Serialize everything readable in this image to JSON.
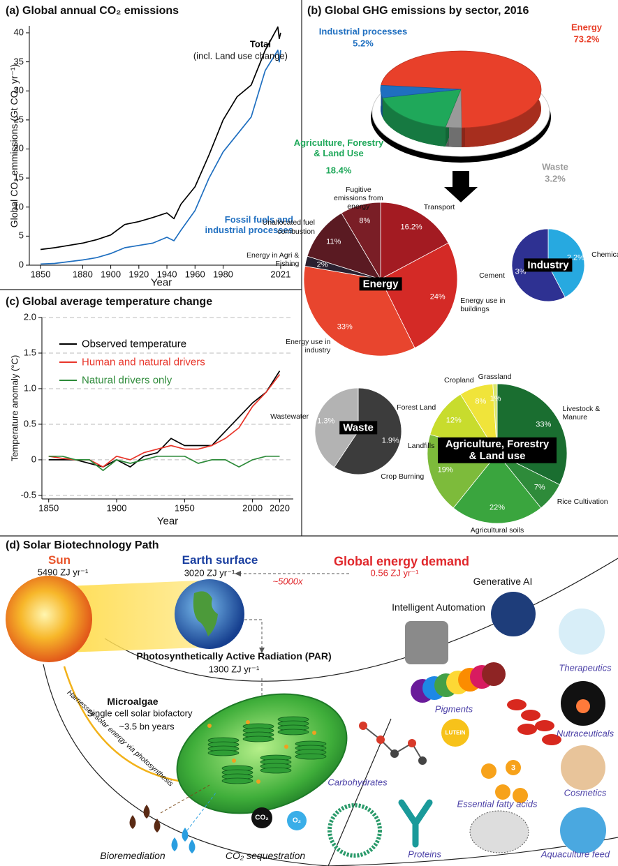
{
  "chart_data": [
    {
      "type": "line",
      "title": "(a) Global annual CO₂ emissions",
      "x_label": "Year",
      "y_label": "Global CO₂ emmissions (Gt CO₂ yr⁻¹)",
      "x": [
        1850,
        1860,
        1870,
        1880,
        1890,
        1900,
        1910,
        1920,
        1930,
        1940,
        1945,
        1950,
        1960,
        1970,
        1980,
        1990,
        2000,
        2010,
        2019,
        2020,
        2021
      ],
      "series": [
        {
          "name": "Total",
          "color": "#000000",
          "values": [
            2.7,
            3.0,
            3.4,
            3.8,
            4.4,
            5.2,
            7.0,
            7.5,
            8.2,
            9.0,
            8.0,
            10.5,
            13.5,
            19,
            25,
            29,
            31,
            37,
            41,
            39,
            40
          ]
        },
        {
          "name": "Fossil fuels and industrial processes",
          "color": "#1f6fc0",
          "values": [
            0.2,
            0.3,
            0.6,
            0.9,
            1.3,
            2.0,
            3.0,
            3.4,
            3.8,
            4.8,
            4.2,
            6.0,
            9.4,
            15,
            19.5,
            22.5,
            25.5,
            33.5,
            37,
            35,
            37
          ]
        }
      ],
      "annotations": [
        "(incl. Land use change)"
      ],
      "xlim": [
        1842,
        2030
      ],
      "ylim": [
        0,
        41.2
      ],
      "xticks": [
        1850,
        1880,
        1900,
        1920,
        1940,
        1960,
        1980,
        2021
      ],
      "yticks": [
        0,
        5,
        10,
        15,
        20,
        25,
        30,
        35,
        40
      ],
      "grid": false
    },
    {
      "type": "line",
      "title": "(c) Global average temperature change",
      "x_label": "Year",
      "y_label": "Temperature anomaly (°C)",
      "x": [
        1850,
        1860,
        1870,
        1880,
        1890,
        1900,
        1910,
        1920,
        1930,
        1940,
        1950,
        1960,
        1970,
        1980,
        1990,
        2000,
        2010,
        2020
      ],
      "series": [
        {
          "name": "Observed temperature",
          "color": "#000000",
          "values": [
            0.0,
            0.0,
            0.0,
            -0.05,
            -0.1,
            0.0,
            -0.1,
            0.05,
            0.1,
            0.3,
            0.2,
            0.2,
            0.2,
            0.4,
            0.6,
            0.8,
            0.95,
            1.25
          ]
        },
        {
          "name": "Human and natural drivers",
          "color": "#e8352a",
          "values": [
            0.05,
            0.02,
            0.0,
            0.0,
            -0.1,
            0.05,
            0.0,
            0.1,
            0.15,
            0.2,
            0.15,
            0.15,
            0.2,
            0.3,
            0.45,
            0.75,
            0.95,
            1.2
          ]
        },
        {
          "name": "Natural drivers only",
          "color": "#2e8b3a",
          "values": [
            0.05,
            0.05,
            0.0,
            0.0,
            -0.15,
            0.0,
            -0.05,
            0.0,
            0.05,
            0.05,
            0.05,
            -0.05,
            0.0,
            0.0,
            -0.1,
            0.0,
            0.05,
            0.05
          ]
        }
      ],
      "xlim": [
        1845,
        2030
      ],
      "ylim": [
        -0.55,
        2.0
      ],
      "xticks": [
        1850,
        1900,
        1950,
        2000,
        2020
      ],
      "yticks": [
        -0.5,
        0,
        0.5,
        {
          "value": 1,
          "label": "1.0"
        },
        1.5,
        {
          "value": 2,
          "label": "2.0"
        }
      ],
      "grid": true,
      "legend": "upper left"
    },
    {
      "type": "pie",
      "title": "(b) Global GHG emissions by sector, 2016",
      "categories": [
        "Energy",
        "Waste",
        "Agriculture, Forestry & Land Use",
        "Industrial processes"
      ],
      "values": [
        73.2,
        3.2,
        18.4,
        5.2
      ],
      "value_labels": [
        "73.2%",
        "3.2%",
        "18.4%",
        "5.2%"
      ],
      "colors": [
        "#e8402a",
        "#9a9a9a",
        "#1fa85a",
        "#1f6fc0"
      ]
    },
    {
      "type": "pie",
      "title": "Energy",
      "categories": [
        "Transport",
        "Energy use in buildings",
        "Energy use in industry",
        "Energy in Agri & Fishing",
        "Unallocated fuel combustion",
        "Fugitive emissions from energy"
      ],
      "values": [
        16.2,
        24,
        33,
        2,
        11,
        8
      ],
      "value_labels": [
        "16.2%",
        "24%",
        "33%",
        "2%",
        "11%",
        "8%"
      ],
      "colors": [
        "#a31b22",
        "#d42a26",
        "#e8452e",
        "#2a2030",
        "#5a1a22",
        "#7a1e26"
      ]
    },
    {
      "type": "pie",
      "title": "Industry",
      "categories": [
        "Chemicals",
        "Cement"
      ],
      "values": [
        2.2,
        3
      ],
      "value_labels": [
        "2.2%",
        "3%"
      ],
      "colors": [
        "#27a9e0",
        "#2e3192"
      ]
    },
    {
      "type": "pie",
      "title": "Waste",
      "categories": [
        "Landfills",
        "Wastewater"
      ],
      "values": [
        1.9,
        1.3
      ],
      "value_labels": [
        "1.9%",
        "1.3%"
      ],
      "colors": [
        "#3c3c3c",
        "#b3b3b3"
      ]
    },
    {
      "type": "pie",
      "title": "Agriculture, Forestry & Land use",
      "categories": [
        "Livestock & Manure",
        "Rice Cultivation",
        "Agricultural soils",
        "Crop Burning",
        "Forest Land",
        "Cropland",
        "Grassland"
      ],
      "values": [
        33,
        7,
        22,
        19,
        12,
        8,
        1
      ],
      "value_labels": [
        "33%",
        "7%",
        "22%",
        "19%",
        "12%",
        "8%",
        "1%"
      ],
      "colors": [
        "#1a6e30",
        "#2e8b3a",
        "#3aa53e",
        "#7dbb3b",
        "#c8dc2d",
        "#f0e43a",
        "#d8e66a"
      ]
    }
  ],
  "diagram": {
    "title": "(d) Solar Biotechnology Path",
    "sun": {
      "name": "Sun",
      "value": "5490 ZJ yr⁻¹"
    },
    "earth": {
      "name": "Earth surface",
      "value": "3020 ZJ yr⁻¹"
    },
    "demand": {
      "name": "Global energy demand",
      "value": "0.56 ZJ yr⁻¹"
    },
    "ratio": "~5000x",
    "par": {
      "name": "Photosynthetically Active Radiation (PAR)",
      "value": "1300 ZJ yr⁻¹"
    },
    "microalgae": {
      "name": "Microalgae",
      "line1": "Single cell solar biofactory",
      "line2": "~3.5 bn years"
    },
    "arc_label": "Harnesses solar energy via photosynthesis",
    "tech": [
      "Generative AI",
      "Intelligent Automation"
    ],
    "products": [
      "Therapeutics",
      "Pigments",
      "Nutraceuticals",
      "Cosmetics",
      "Carbohydrates",
      "Essential fatty acids",
      "Proteins",
      "Aquaculture feed"
    ],
    "bioremediation": "Bioremediation",
    "sequestration": "CO₂ sequestration",
    "co2": "CO₂",
    "o2": "O₂",
    "lutein": "LUTEIN",
    "omega": "3"
  }
}
